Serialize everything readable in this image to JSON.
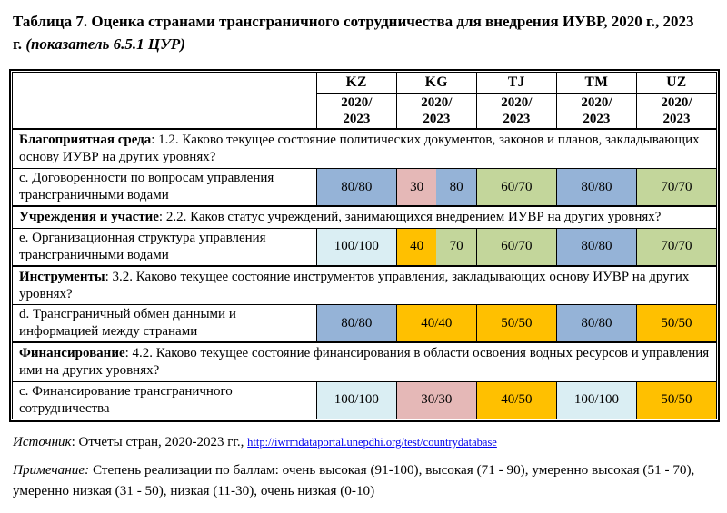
{
  "title": {
    "main": "Таблица 7. Оценка странами трансграничного сотрудничества для внедрения ИУВР, 2020 г., 2023 г.",
    "note": "(показатель 6.5.1 ЦУР)"
  },
  "header": {
    "countries": [
      "KZ",
      "KG",
      "TJ",
      "TM",
      "UZ"
    ],
    "period_line1": "2020/",
    "period_line2": "2023"
  },
  "palette": {
    "blue": "#95B3D7",
    "green": "#C3D69B",
    "orange": "#FFC000",
    "pink": "#E5B8B7",
    "lightblue": "#DAEEF3"
  },
  "sections": [
    {
      "header_bold": "Благоприятная среда",
      "header_rest": ": 1.2. Каково текущее состояние политических документов, законов и планов, закладывающих основу ИУВР на других уровнях?",
      "row_label": "c. Договоренности по вопросам управления трансграничными водами",
      "cells": [
        {
          "text": "80/80",
          "color": "blue"
        },
        {
          "split": true,
          "left": {
            "text": "30",
            "color": "pink"
          },
          "right": {
            "text": "80",
            "color": "blue"
          }
        },
        {
          "text": "60/70",
          "color": "green"
        },
        {
          "text": "80/80",
          "color": "blue"
        },
        {
          "text": "70/70",
          "color": "green"
        }
      ]
    },
    {
      "header_bold": "Учреждения и участие",
      "header_rest": ": 2.2. Каков статус учреждений, занимающихся внедрением ИУВР на других уровнях?",
      "row_label": "e. Организационная структура управления трансграничными водами",
      "cells": [
        {
          "text": "100/100",
          "color": "lightblue"
        },
        {
          "split": true,
          "left": {
            "text": "40",
            "color": "orange"
          },
          "right": {
            "text": "70",
            "color": "green"
          }
        },
        {
          "text": "60/70",
          "color": "green"
        },
        {
          "text": "80/80",
          "color": "blue"
        },
        {
          "text": "70/70",
          "color": "green"
        }
      ]
    },
    {
      "header_bold": "Инструменты",
      "header_rest": ": 3.2. Каково текущее состояние инструментов управления, закладывающих основу ИУВР на других уровнях?",
      "row_label": "d. Трансграничный обмен данными и информацией между странами",
      "cells": [
        {
          "text": "80/80",
          "color": "blue"
        },
        {
          "text": "40/40",
          "color": "orange"
        },
        {
          "text": "50/50",
          "color": "orange"
        },
        {
          "text": "80/80",
          "color": "blue"
        },
        {
          "text": "50/50",
          "color": "orange"
        }
      ]
    },
    {
      "header_bold": "Финансирование",
      "header_rest": ": 4.2. Каково текущее состояние финансирования в области освоения водных ресурсов и управления ими на других уровнях?",
      "row_label": "c. Финансирование трансграничного сотрудничества",
      "cells": [
        {
          "text": "100/100",
          "color": "lightblue"
        },
        {
          "text": "30/30",
          "color": "pink"
        },
        {
          "text": "40/50",
          "color": "orange"
        },
        {
          "text": "100/100",
          "color": "lightblue"
        },
        {
          "text": "50/50",
          "color": "orange"
        }
      ]
    }
  ],
  "source": {
    "label": "Источник",
    "text": ": Отчеты стран, 2020-2023 гг., ",
    "link": "http://iwrmdataportal.unepdhi.org/test/countrydatabase",
    "link_color": "#0000EE"
  },
  "note": {
    "label": "Примечание:",
    "text": " Степень реализации по баллам: очень высокая (91-100), высокая (71 - 90), умеренно высокая (51 - 70), умеренно низкая (31 - 50), низкая (11-30), очень низкая (0-10)"
  }
}
